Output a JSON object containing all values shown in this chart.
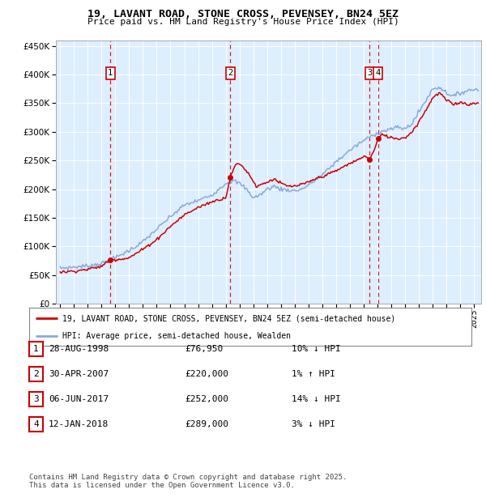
{
  "title": "19, LAVANT ROAD, STONE CROSS, PEVENSEY, BN24 5EZ",
  "subtitle": "Price paid vs. HM Land Registry's House Price Index (HPI)",
  "legend_line1": "19, LAVANT ROAD, STONE CROSS, PEVENSEY, BN24 5EZ (semi-detached house)",
  "legend_line2": "HPI: Average price, semi-detached house, Wealden",
  "line_color": "#cc0000",
  "hpi_color": "#88aadd",
  "bg_color": "#ddeeff",
  "transactions": [
    {
      "num": 1,
      "date": "28-AUG-1998",
      "price": 76950,
      "pct": "10%",
      "dir": "↓",
      "year": 1998.65
    },
    {
      "num": 2,
      "date": "30-APR-2007",
      "price": 220000,
      "pct": "1%",
      "dir": "↑",
      "year": 2007.33
    },
    {
      "num": 3,
      "date": "06-JUN-2017",
      "price": 252000,
      "pct": "14%",
      "dir": "↓",
      "year": 2017.42
    },
    {
      "num": 4,
      "date": "12-JAN-2018",
      "price": 289000,
      "pct": "3%",
      "dir": "↓",
      "year": 2018.03
    }
  ],
  "footer": "Contains HM Land Registry data © Crown copyright and database right 2025.\nThis data is licensed under the Open Government Licence v3.0.",
  "ylim": [
    0,
    460000
  ],
  "yticks": [
    0,
    50000,
    100000,
    150000,
    200000,
    250000,
    300000,
    350000,
    400000,
    450000
  ],
  "xlim_start": 1994.7,
  "xlim_end": 2025.5,
  "hpi_anchors": [
    [
      1995.0,
      62000
    ],
    [
      1996.0,
      64000
    ],
    [
      1997.0,
      66000
    ],
    [
      1998.0,
      70000
    ],
    [
      1999.0,
      80000
    ],
    [
      2000.0,
      93000
    ],
    [
      2001.0,
      108000
    ],
    [
      2002.0,
      130000
    ],
    [
      2003.0,
      152000
    ],
    [
      2004.0,
      172000
    ],
    [
      2005.0,
      180000
    ],
    [
      2006.0,
      190000
    ],
    [
      2007.0,
      210000
    ],
    [
      2007.5,
      215000
    ],
    [
      2008.0,
      210000
    ],
    [
      2008.5,
      200000
    ],
    [
      2009.0,
      185000
    ],
    [
      2009.5,
      190000
    ],
    [
      2010.0,
      200000
    ],
    [
      2010.5,
      205000
    ],
    [
      2011.0,
      200000
    ],
    [
      2012.0,
      197000
    ],
    [
      2012.5,
      200000
    ],
    [
      2013.0,
      207000
    ],
    [
      2014.0,
      225000
    ],
    [
      2015.0,
      248000
    ],
    [
      2016.0,
      268000
    ],
    [
      2017.0,
      285000
    ],
    [
      2017.5,
      292000
    ],
    [
      2018.0,
      298000
    ],
    [
      2018.5,
      302000
    ],
    [
      2019.0,
      305000
    ],
    [
      2019.5,
      308000
    ],
    [
      2020.0,
      305000
    ],
    [
      2020.5,
      315000
    ],
    [
      2021.0,
      335000
    ],
    [
      2021.5,
      355000
    ],
    [
      2022.0,
      375000
    ],
    [
      2022.5,
      378000
    ],
    [
      2023.0,
      368000
    ],
    [
      2023.5,
      362000
    ],
    [
      2024.0,
      368000
    ],
    [
      2024.5,
      372000
    ],
    [
      2025.3,
      375000
    ]
  ],
  "prop_anchors": [
    [
      1995.0,
      55000
    ],
    [
      1996.0,
      57000
    ],
    [
      1997.0,
      60000
    ],
    [
      1998.0,
      65000
    ],
    [
      1998.65,
      76950
    ],
    [
      1999.0,
      77000
    ],
    [
      2000.0,
      80000
    ],
    [
      2001.0,
      95000
    ],
    [
      2002.0,
      112000
    ],
    [
      2003.0,
      135000
    ],
    [
      2004.0,
      155000
    ],
    [
      2005.0,
      168000
    ],
    [
      2006.0,
      178000
    ],
    [
      2007.0,
      185000
    ],
    [
      2007.33,
      220000
    ],
    [
      2007.6,
      238000
    ],
    [
      2007.9,
      245000
    ],
    [
      2008.3,
      238000
    ],
    [
      2008.8,
      222000
    ],
    [
      2009.2,
      205000
    ],
    [
      2009.8,
      210000
    ],
    [
      2010.5,
      218000
    ],
    [
      2011.0,
      210000
    ],
    [
      2011.5,
      205000
    ],
    [
      2012.0,
      205000
    ],
    [
      2012.5,
      208000
    ],
    [
      2013.0,
      212000
    ],
    [
      2013.5,
      218000
    ],
    [
      2014.0,
      222000
    ],
    [
      2015.0,
      232000
    ],
    [
      2016.0,
      245000
    ],
    [
      2016.5,
      250000
    ],
    [
      2017.0,
      258000
    ],
    [
      2017.42,
      252000
    ],
    [
      2017.8,
      270000
    ],
    [
      2018.03,
      289000
    ],
    [
      2018.3,
      295000
    ],
    [
      2019.0,
      290000
    ],
    [
      2019.5,
      288000
    ],
    [
      2020.0,
      290000
    ],
    [
      2020.5,
      300000
    ],
    [
      2021.0,
      318000
    ],
    [
      2021.5,
      338000
    ],
    [
      2022.0,
      360000
    ],
    [
      2022.5,
      368000
    ],
    [
      2023.0,
      355000
    ],
    [
      2023.5,
      348000
    ],
    [
      2024.0,
      352000
    ],
    [
      2024.5,
      348000
    ],
    [
      2025.3,
      350000
    ]
  ]
}
